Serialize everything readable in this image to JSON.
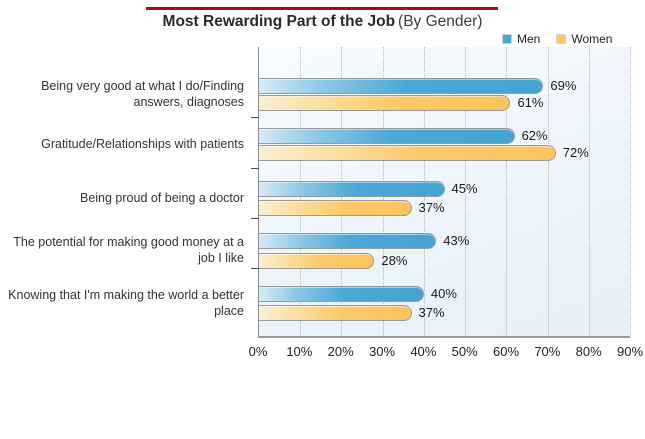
{
  "header": {
    "title_bold": "Most Rewarding Part of the Job",
    "title_light": "(By Gender)",
    "rule_color": "#a50d12"
  },
  "chart_data": {
    "type": "bar",
    "orientation": "horizontal",
    "title": "Most Rewarding Part of the Job (By Gender)",
    "categories": [
      "Being very good at what I do/Finding answers, diagnoses",
      "Gratitude/Relationships with patients",
      "Being proud of being a doctor",
      "The potential for making good money at a job I like",
      "Knowing that I'm making the world a better place"
    ],
    "series": [
      {
        "name": "Men",
        "color": "#4aa7d5",
        "values": [
          69,
          62,
          45,
          43,
          40
        ]
      },
      {
        "name": "Women",
        "color": "#fdc763",
        "values": [
          61,
          72,
          37,
          28,
          37
        ]
      }
    ],
    "value_suffix": "%",
    "xlabel": "",
    "ylabel": "",
    "xlim": [
      0,
      90
    ],
    "x_ticks": [
      "0%",
      "10%",
      "20%",
      "30%",
      "40%",
      "50%",
      "60%",
      "70%",
      "80%",
      "90%"
    ],
    "grid": "vertical-dotted",
    "legend_position": "top-right"
  }
}
